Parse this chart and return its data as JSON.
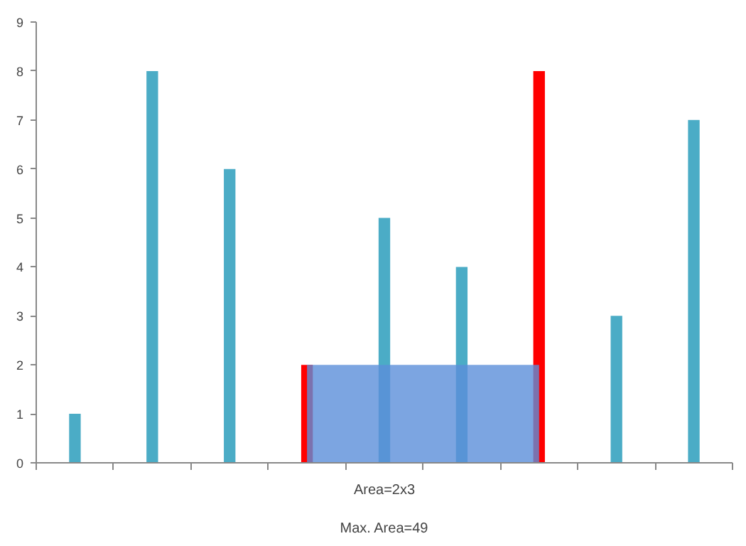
{
  "chart_data": {
    "type": "bar",
    "categories": [
      null,
      null,
      null,
      null,
      null,
      null,
      null,
      null,
      null
    ],
    "series": [
      {
        "values": [
          1,
          8,
          6,
          2,
          5,
          4,
          8,
          3,
          7
        ],
        "colors": [
          "#4bacc6",
          "#4bacc6",
          "#4bacc6",
          "#ff0000",
          "#4bacc6",
          "#4bacc6",
          "#ff0000",
          "#4bacc6",
          "#4bacc6"
        ]
      },
      {
        "type": "area",
        "color": "#5b8fd9",
        "values": [
          null,
          null,
          null,
          2,
          2,
          2,
          2,
          null,
          null
        ]
      }
    ],
    "ylim": [
      0,
      9
    ],
    "yticks": [
      0,
      1,
      2,
      3,
      4,
      5,
      6,
      7,
      8,
      9
    ],
    "grid": false,
    "tick_labels": "y",
    "annotations": [
      "Area=2x3",
      "Max. Area=49"
    ]
  }
}
